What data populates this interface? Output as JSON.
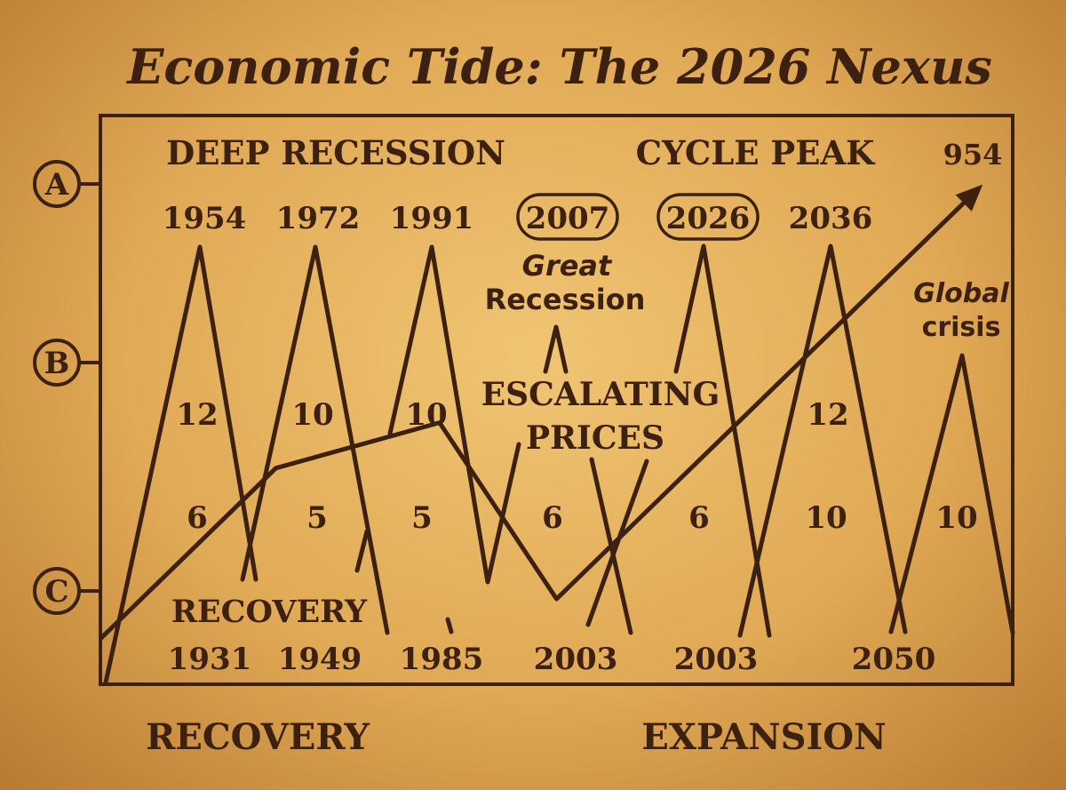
{
  "chart_data": {
    "type": "line",
    "title": "Economic Tide: The 2026 Nexus",
    "row_markers": [
      "A",
      "B",
      "C"
    ],
    "row_a_labels": {
      "left": "DEEP RECESSION",
      "right": "CYCLE PEAK",
      "trend_end": "954"
    },
    "peak_years": [
      {
        "label": "1954",
        "circled": false
      },
      {
        "label": "1972",
        "circled": false
      },
      {
        "label": "1991",
        "circled": false
      },
      {
        "label": "2007",
        "circled": true
      },
      {
        "label": "2026",
        "circled": true
      },
      {
        "label": "2036",
        "circled": false
      }
    ],
    "annotations": {
      "great_recession": [
        "Great",
        "Recession"
      ],
      "escalating_prices": [
        "ESCALATING",
        "PRICES"
      ],
      "global_crisis": [
        "Global",
        "crisis"
      ],
      "inner_recovery": "RECOVERY"
    },
    "upper_values": [
      "12",
      "10",
      "10",
      "12"
    ],
    "lower_values": [
      "6",
      "5",
      "5",
      "6",
      "6",
      "10",
      "10"
    ],
    "trough_years": [
      "1931",
      "1949",
      "1985",
      "2003",
      "2003",
      "2050"
    ],
    "footer": {
      "left": "RECOVERY",
      "right": "EXPANSION"
    },
    "trend_line": [
      [
        0.0,
        8
      ],
      [
        1.5,
        38
      ],
      [
        2.9,
        46
      ],
      [
        3.9,
        15
      ],
      [
        7.5,
        87
      ]
    ]
  }
}
